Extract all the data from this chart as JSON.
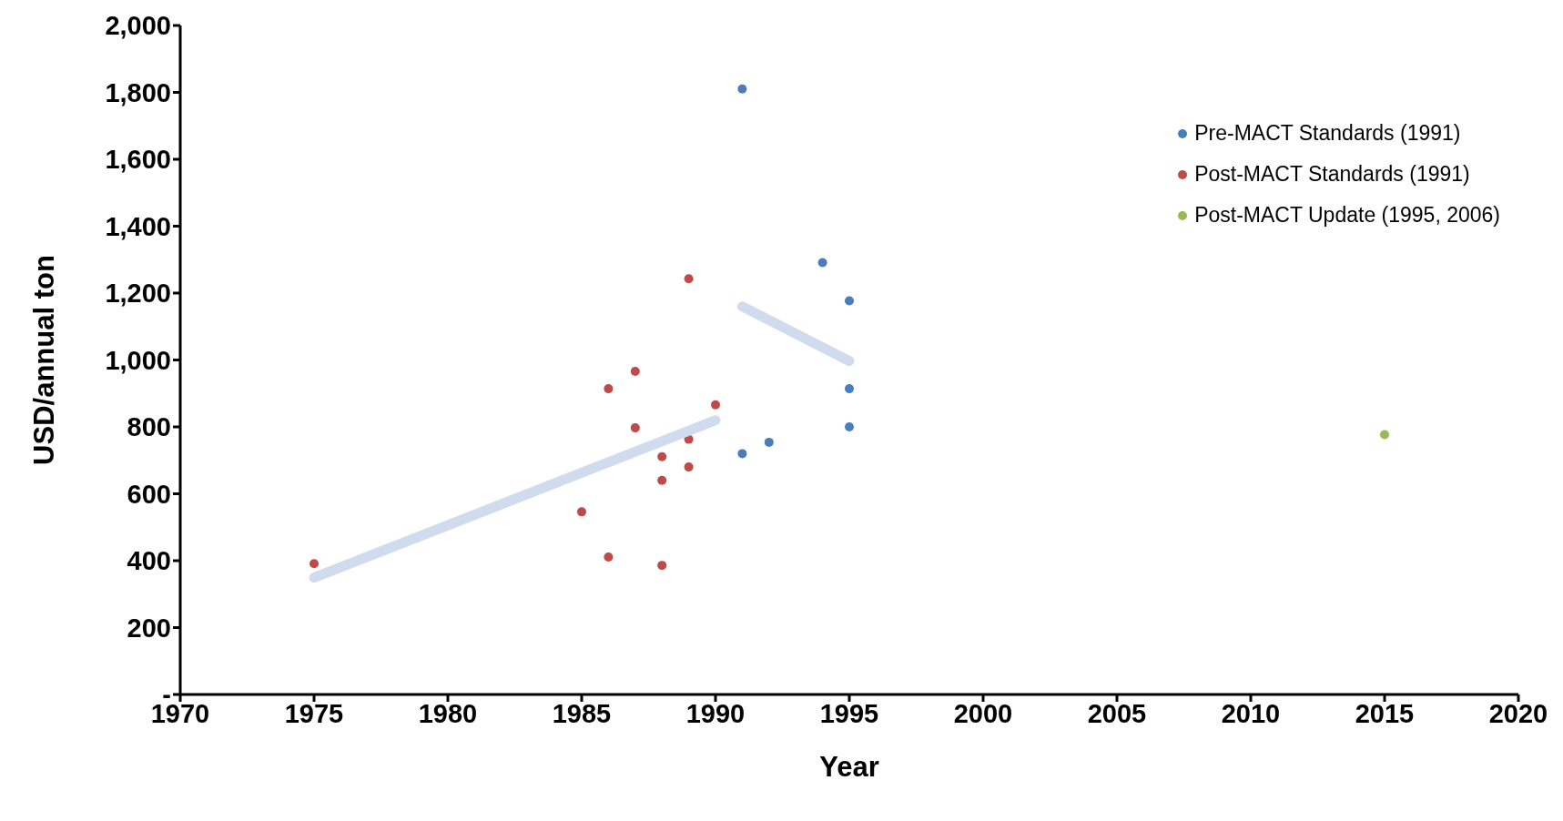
{
  "chart_data": {
    "type": "scatter",
    "xlabel": "Year",
    "ylabel": "USD/annual ton",
    "xlim": [
      1970,
      2020
    ],
    "xticks": [
      1970,
      1975,
      1980,
      1985,
      1990,
      1995,
      2000,
      2005,
      2010,
      2015,
      2020
    ],
    "ylim": [
      0,
      2000
    ],
    "yticks": [
      {
        "value": 0,
        "label": "-"
      },
      {
        "value": 200,
        "label": "200"
      },
      {
        "value": 400,
        "label": "400"
      },
      {
        "value": 600,
        "label": "600"
      },
      {
        "value": 800,
        "label": "800"
      },
      {
        "value": 1000,
        "label": "1,000"
      },
      {
        "value": 1200,
        "label": "1,200"
      },
      {
        "value": 1400,
        "label": "1,400"
      },
      {
        "value": 1600,
        "label": "1,600"
      },
      {
        "value": 1800,
        "label": "1,800"
      },
      {
        "value": 2000,
        "label": "2,000"
      }
    ],
    "grid": false,
    "legend": "top right",
    "series": [
      {
        "name": "Pre-MACT Standards (1991)",
        "color": "#4a7ebb",
        "marker": "circle",
        "x": [
          1991,
          1991,
          1992,
          1994,
          1995,
          1995,
          1995
        ],
        "values": [
          1810,
          720,
          754,
          1291,
          1177,
          914,
          800
        ]
      },
      {
        "name": "Post-MACT Standards (1991)",
        "color": "#be4b48",
        "marker": "circle",
        "x": [
          1975,
          1985,
          1986,
          1986,
          1987,
          1987,
          1988,
          1988,
          1988,
          1989,
          1989,
          1989,
          1990
        ],
        "values": [
          391,
          546,
          914,
          411,
          966,
          797,
          711,
          640,
          386,
          1243,
          763,
          680,
          866
        ]
      },
      {
        "name": "Post-MACT Update (1995, 2006)",
        "color": "#98b954",
        "marker": "circle",
        "x": [
          2015
        ],
        "values": [
          777
        ]
      },
      {
        "type": "line",
        "color": "#d0dcee",
        "marker": "none",
        "x": [
          1975,
          1990
        ],
        "values": [
          349,
          820
        ]
      },
      {
        "type": "line",
        "color": "#d0dcee",
        "marker": "none",
        "x": [
          1991,
          1995
        ],
        "values": [
          1160,
          997
        ]
      }
    ]
  }
}
